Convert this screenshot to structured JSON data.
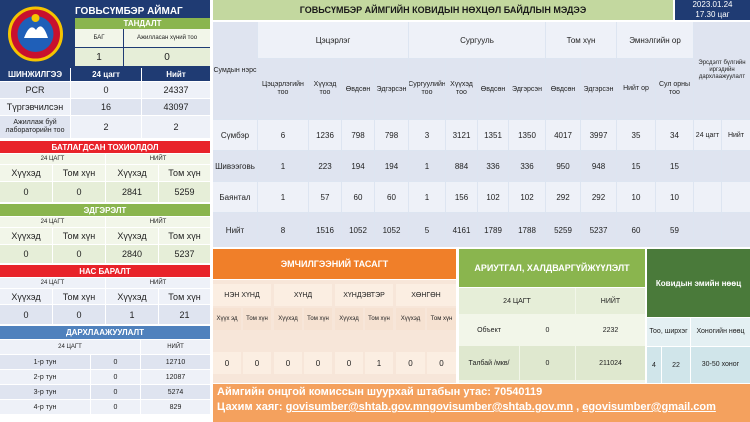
{
  "aimag_title": "ГОВЬСҮМБЭР АЙМАГ",
  "main_title": "ГОВЬСҮМБЭР АЙМГИЙН КОВИДЫН НӨХЦӨЛ БАЙДЛЫН МЭДЭЭ",
  "date": "2023.01.24",
  "time": "17.30 цаг",
  "tandalt": {
    "title": "ТАНДАЛТ",
    "col1": "БАГ",
    "col2": "Ажилласан хүний тоо",
    "v1": "1",
    "v2": "0"
  },
  "shinjilgee": {
    "title": "ШИНЖИЛГЭЭ",
    "col1": "24 цагт",
    "col2": "Нийт",
    "rows": [
      {
        "label": "PCR",
        "a": "0",
        "b": "24337"
      },
      {
        "label": "Түргэвчилсэн",
        "a": "16",
        "b": "43097"
      },
      {
        "label": "Ажиллаж буй лабораторийн тоо",
        "a": "2",
        "b": "2"
      }
    ]
  },
  "batlagdsan": {
    "title": "БАТЛАГДСАН ТОХИОЛДОЛ",
    "h24": "24 ЦАГТ",
    "hall": "НИЙТ",
    "c1": "Хүүхэд",
    "c2": "Том хүн",
    "c3": "Хүүхэд",
    "c4": "Том хүн",
    "v": [
      "0",
      "0",
      "2841",
      "5259"
    ]
  },
  "edgersen": {
    "title": "ЭДГЭРЭЛТ",
    "h24": "24 ЦАГТ",
    "hall": "НИЙТ",
    "c1": "Хүүхэд",
    "c2": "Том хүн",
    "c3": "Хүүхэд",
    "c4": "Том хүн",
    "v": [
      "0",
      "0",
      "2840",
      "5237"
    ]
  },
  "nas_baralt": {
    "title": "НАС БАРАЛТ",
    "h24": "24 ЦАГТ",
    "hall": "НИЙТ",
    "c1": "Хүүхэд",
    "c2": "Том хүн",
    "c3": "Хүүхэд",
    "c4": "Том хүн",
    "v": [
      "0",
      "0",
      "1",
      "21"
    ]
  },
  "darhlaa": {
    "title": "ДАРХЛААЖУУЛАЛТ",
    "h24": "24 ЦАГТ",
    "hall": "НИЙТ",
    "rows": [
      {
        "label": "1-р тун",
        "a": "0",
        "b": "12710"
      },
      {
        "label": "2-р тун",
        "a": "0",
        "b": "12087"
      },
      {
        "label": "3-р тун",
        "a": "0",
        "b": "5274"
      },
      {
        "label": "4-р тун",
        "a": "0",
        "b": "829"
      }
    ]
  },
  "main_table": {
    "sum_label": "Сумдын нэрс",
    "group_a": "Цэцэрлэг",
    "group_b": "Сургууль",
    "group_c": "Том хүн",
    "group_d": "Эмнэлгийн ор",
    "group_e": "Эрсдэлт бүлгийн иргэдийн дархлаажуулалт",
    "sub": [
      "Цэцэрлэгийн тоо",
      "Хүүхэд тоо",
      "Өвдсөн",
      "Эдгэрсэн",
      "Сургуулийн тоо",
      "Хүүхэд тоо",
      "Өвдсөн",
      "Эдгэрсэн",
      "Өвдсөн",
      "Эдгэрсэн",
      "Нийт ор",
      "Сул орны тоо"
    ],
    "rows": [
      {
        "name": "Сүмбэр",
        "v": [
          "6",
          "1236",
          "798",
          "798",
          "3",
          "3121",
          "1351",
          "1350",
          "4017",
          "3997",
          "35",
          "34"
        ],
        "e1": "24 цагт",
        "e2": "Нийт"
      },
      {
        "name": "Шивээговь",
        "v": [
          "1",
          "223",
          "194",
          "194",
          "1",
          "884",
          "336",
          "336",
          "950",
          "948",
          "15",
          "15"
        ],
        "e1": "",
        "e2": ""
      },
      {
        "name": "Баянтал",
        "v": [
          "1",
          "57",
          "60",
          "60",
          "1",
          "156",
          "102",
          "102",
          "292",
          "292",
          "10",
          "10"
        ],
        "e1": "",
        "e2": ""
      },
      {
        "name": "Нийт",
        "v": [
          "8",
          "1516",
          "1052",
          "1052",
          "5",
          "4161",
          "1789",
          "1788",
          "5259",
          "5237",
          "60",
          "59"
        ],
        "e1": "",
        "e2": ""
      }
    ]
  },
  "emneleg": {
    "title": "ЭМЧИЛГЭЭНИЙ ТАСАГТ",
    "groups": [
      "НЭН ХҮНД",
      "ХҮНД",
      "ХҮНДЭВТЭР",
      "ХӨНГӨН"
    ],
    "sub": [
      "Хүүх эд",
      "Том хүн",
      "Хүүхэд",
      "Том хүн",
      "Хүүхэд",
      "Том хүн",
      "Хүүхэд",
      "Том хүн"
    ],
    "v": [
      "0",
      "0",
      "0",
      "0",
      "0",
      "1",
      "0",
      "0"
    ]
  },
  "ariutgal": {
    "title": "АРИУТГАЛ, ХАЛДВАРГҮЙЖҮҮЛЭЛТ",
    "h24": "24 ЦАГТ",
    "hall": "НИЙТ",
    "rows": [
      {
        "label": "Объект",
        "a": "0",
        "b": "2232"
      },
      {
        "label": "Талбай /мкв/",
        "a": "0",
        "b": "211024"
      }
    ]
  },
  "emiin_nuuts": {
    "title": "Ковидын эмийн нөөц",
    "col1": "Тоо, ширхэг",
    "col2": "Хоногийн нөөц",
    "v1": "4",
    "v2": "22",
    "v3": "30-50 хоног"
  },
  "footer": {
    "phone_line": "Аймгийн онцгой комиссын шуурхай штабын утас: 70540119",
    "email_label": "Цахим хаяг: ",
    "email1": "govisumber@shtab.gov.mn",
    "email2": "govisumber@shtab.gov.mn",
    "email_sep": " , ",
    "email3": "egovisumber@gmail.com"
  },
  "colors": {
    "green": "#8ab54e",
    "red": "#e8232a",
    "navy": "#1f3b73",
    "purple": "#8064a2",
    "orange": "#f07f29",
    "teal": "#4bacc6",
    "blue": "#4f81bd"
  }
}
